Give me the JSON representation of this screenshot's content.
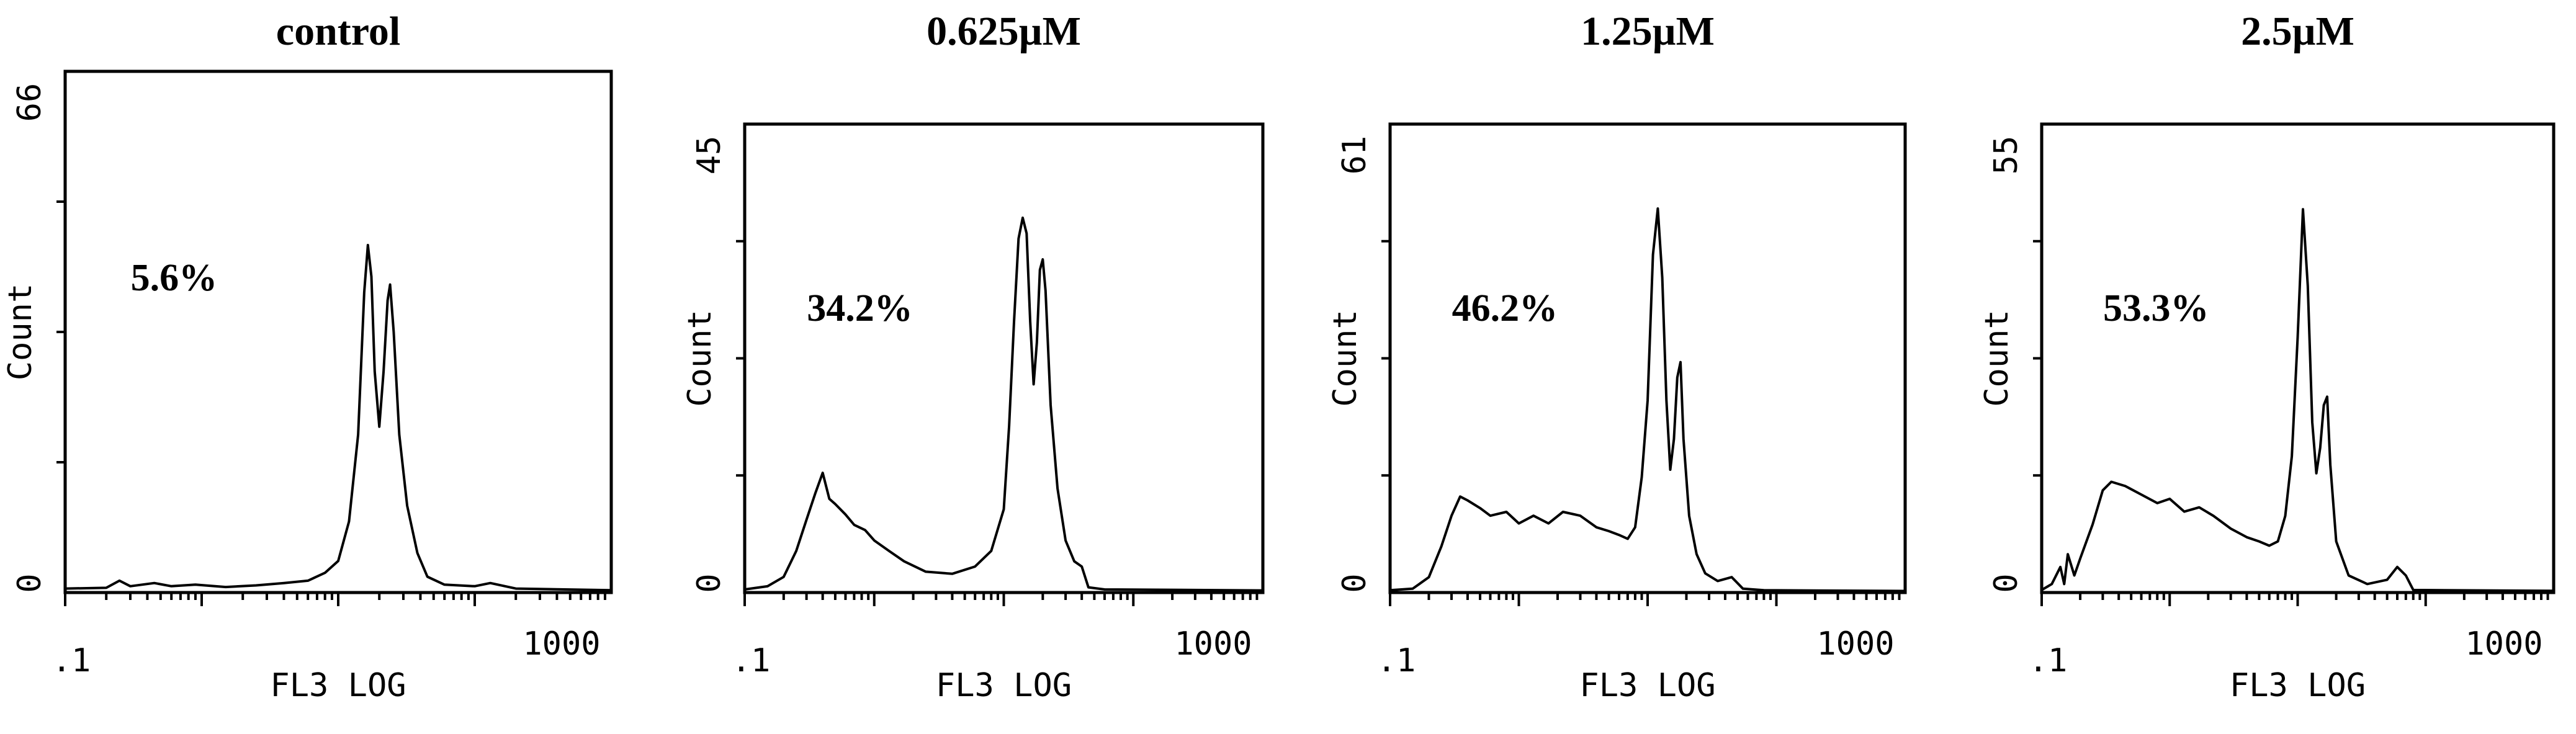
{
  "chart_data": [
    {
      "type": "histogram",
      "title": "control",
      "annotation": "5.6%",
      "xlabel": "FL3 LOG",
      "ylabel": "Count",
      "x_scale": "log",
      "xlim": [
        0.1,
        1000
      ],
      "x_tick_labels": [
        ".1",
        "1000"
      ],
      "ylim": [
        0,
        66
      ],
      "y_tick_labels": [
        "0",
        "66"
      ],
      "grid": false,
      "points": [
        [
          0.1,
          0.5
        ],
        [
          0.2,
          0.6
        ],
        [
          0.25,
          1.5
        ],
        [
          0.3,
          0.8
        ],
        [
          0.45,
          1.2
        ],
        [
          0.6,
          0.8
        ],
        [
          0.9,
          1.0
        ],
        [
          1.5,
          0.7
        ],
        [
          2.5,
          0.9
        ],
        [
          4,
          1.2
        ],
        [
          6,
          1.5
        ],
        [
          8,
          2.5
        ],
        [
          10,
          4
        ],
        [
          12,
          9
        ],
        [
          14,
          20
        ],
        [
          15.5,
          38
        ],
        [
          16.5,
          44
        ],
        [
          17.5,
          40
        ],
        [
          18.5,
          28
        ],
        [
          20,
          21
        ],
        [
          21.5,
          28
        ],
        [
          23,
          37
        ],
        [
          24,
          39
        ],
        [
          25.5,
          33
        ],
        [
          28,
          20
        ],
        [
          32,
          11
        ],
        [
          38,
          5
        ],
        [
          45,
          2
        ],
        [
          60,
          1
        ],
        [
          100,
          0.8
        ],
        [
          130,
          1.2
        ],
        [
          200,
          0.5
        ],
        [
          1000,
          0.3
        ]
      ]
    },
    {
      "type": "histogram",
      "title": "0.625µM",
      "annotation": "34.2%",
      "xlabel": "FL3 LOG",
      "ylabel": "Count",
      "x_scale": "log",
      "xlim": [
        0.1,
        1000
      ],
      "x_tick_labels": [
        ".1",
        "1000"
      ],
      "ylim": [
        0,
        45
      ],
      "y_tick_labels": [
        "0",
        "45"
      ],
      "grid": false,
      "points": [
        [
          0.1,
          0.3
        ],
        [
          0.15,
          0.6
        ],
        [
          0.2,
          1.5
        ],
        [
          0.25,
          4
        ],
        [
          0.3,
          7
        ],
        [
          0.35,
          9.5
        ],
        [
          0.4,
          11.5
        ],
        [
          0.45,
          9
        ],
        [
          0.5,
          8.5
        ],
        [
          0.6,
          7.5
        ],
        [
          0.7,
          6.5
        ],
        [
          0.85,
          6
        ],
        [
          1,
          5
        ],
        [
          1.3,
          4
        ],
        [
          1.7,
          3
        ],
        [
          2.5,
          2
        ],
        [
          4,
          1.8
        ],
        [
          6,
          2.5
        ],
        [
          8,
          4
        ],
        [
          10,
          8
        ],
        [
          11,
          16
        ],
        [
          12,
          26
        ],
        [
          13,
          34
        ],
        [
          14,
          36
        ],
        [
          15,
          34.5
        ],
        [
          16,
          26
        ],
        [
          17,
          20
        ],
        [
          18,
          24
        ],
        [
          19,
          31
        ],
        [
          20,
          32
        ],
        [
          21,
          29
        ],
        [
          23,
          18
        ],
        [
          26,
          10
        ],
        [
          30,
          5
        ],
        [
          35,
          3
        ],
        [
          40,
          2.5
        ],
        [
          45,
          0.5
        ],
        [
          60,
          0.3
        ],
        [
          1000,
          0.2
        ]
      ]
    },
    {
      "type": "histogram",
      "title": "1.25µM",
      "annotation": "46.2%",
      "xlabel": "FL3 LOG",
      "ylabel": "Count",
      "x_scale": "log",
      "xlim": [
        0.1,
        1000
      ],
      "x_tick_labels": [
        ".1",
        "1000"
      ],
      "ylim": [
        0,
        61
      ],
      "y_tick_labels": [
        "0",
        "61"
      ],
      "grid": false,
      "points": [
        [
          0.1,
          0.3
        ],
        [
          0.15,
          0.5
        ],
        [
          0.2,
          2
        ],
        [
          0.25,
          6
        ],
        [
          0.3,
          10
        ],
        [
          0.35,
          12.5
        ],
        [
          0.4,
          12
        ],
        [
          0.5,
          11
        ],
        [
          0.6,
          10
        ],
        [
          0.8,
          10.5
        ],
        [
          1,
          9
        ],
        [
          1.3,
          10
        ],
        [
          1.7,
          9
        ],
        [
          2.2,
          10.5
        ],
        [
          3,
          10
        ],
        [
          4,
          8.5
        ],
        [
          5,
          8
        ],
        [
          6,
          7.5
        ],
        [
          7,
          7
        ],
        [
          8,
          8.5
        ],
        [
          9,
          15
        ],
        [
          10,
          25
        ],
        [
          11,
          44
        ],
        [
          12,
          50
        ],
        [
          13,
          41
        ],
        [
          14,
          25
        ],
        [
          15,
          16
        ],
        [
          16,
          20
        ],
        [
          17,
          28
        ],
        [
          18,
          30
        ],
        [
          19,
          20
        ],
        [
          21,
          10
        ],
        [
          24,
          5
        ],
        [
          28,
          2.5
        ],
        [
          35,
          1.5
        ],
        [
          45,
          2
        ],
        [
          55,
          0.5
        ],
        [
          80,
          0.3
        ],
        [
          1000,
          0.2
        ]
      ]
    },
    {
      "type": "histogram",
      "title": "2.5µM",
      "annotation": "53.3%",
      "xlabel": "FL3 LOG",
      "ylabel": "Count",
      "x_scale": "log",
      "xlim": [
        0.1,
        1000
      ],
      "x_tick_labels": [
        ".1",
        "1000"
      ],
      "ylim": [
        0,
        55
      ],
      "y_tick_labels": [
        "0",
        "55"
      ],
      "grid": false,
      "points": [
        [
          0.1,
          0.3
        ],
        [
          0.12,
          1
        ],
        [
          0.14,
          3
        ],
        [
          0.15,
          1
        ],
        [
          0.16,
          4.5
        ],
        [
          0.18,
          2
        ],
        [
          0.2,
          4
        ],
        [
          0.25,
          8
        ],
        [
          0.3,
          12
        ],
        [
          0.35,
          13
        ],
        [
          0.45,
          12.5
        ],
        [
          0.6,
          11.5
        ],
        [
          0.8,
          10.5
        ],
        [
          1,
          11
        ],
        [
          1.3,
          9.5
        ],
        [
          1.7,
          10
        ],
        [
          2.2,
          9
        ],
        [
          3,
          7.5
        ],
        [
          4,
          6.5
        ],
        [
          5,
          6
        ],
        [
          6,
          5.5
        ],
        [
          7,
          6
        ],
        [
          8,
          9
        ],
        [
          9,
          16
        ],
        [
          10,
          30
        ],
        [
          11,
          45
        ],
        [
          12,
          36
        ],
        [
          13,
          20
        ],
        [
          14,
          14
        ],
        [
          15,
          17
        ],
        [
          16,
          22
        ],
        [
          17,
          23
        ],
        [
          18,
          15
        ],
        [
          20,
          6
        ],
        [
          25,
          2
        ],
        [
          35,
          1
        ],
        [
          50,
          1.5
        ],
        [
          60,
          3
        ],
        [
          70,
          2
        ],
        [
          80,
          0.3
        ],
        [
          1000,
          0.2
        ]
      ]
    }
  ]
}
